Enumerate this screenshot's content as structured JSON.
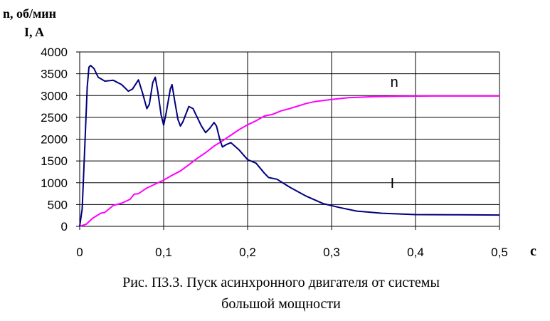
{
  "chart_data": {
    "type": "line",
    "ylabel_line1": "n, об/мин",
    "ylabel_line2": "I, A",
    "xlabel": "c",
    "xlim": [
      0,
      0.5
    ],
    "ylim": [
      0,
      4000
    ],
    "x_ticks": [
      0,
      0.1,
      0.2,
      0.3,
      0.4,
      0.5
    ],
    "x_tick_labels": [
      "0",
      "0,1",
      "0,2",
      "0,3",
      "0,4",
      "0,5"
    ],
    "y_ticks": [
      0,
      500,
      1000,
      1500,
      2000,
      2500,
      3000,
      3500,
      4000
    ],
    "y_tick_labels": [
      "0",
      "500",
      "1000",
      "1500",
      "2000",
      "2500",
      "3000",
      "3500",
      "4000"
    ],
    "grid": true,
    "series": [
      {
        "name": "n",
        "color": "#ff00ff",
        "label_at": [
          0.37,
          3200
        ],
        "points": [
          [
            0,
            0
          ],
          [
            0.008,
            50
          ],
          [
            0.015,
            180
          ],
          [
            0.025,
            300
          ],
          [
            0.03,
            320
          ],
          [
            0.04,
            480
          ],
          [
            0.05,
            530
          ],
          [
            0.06,
            620
          ],
          [
            0.065,
            740
          ],
          [
            0.07,
            750
          ],
          [
            0.08,
            880
          ],
          [
            0.09,
            970
          ],
          [
            0.1,
            1060
          ],
          [
            0.11,
            1170
          ],
          [
            0.12,
            1270
          ],
          [
            0.13,
            1410
          ],
          [
            0.14,
            1560
          ],
          [
            0.15,
            1690
          ],
          [
            0.16,
            1840
          ],
          [
            0.17,
            1960
          ],
          [
            0.18,
            2090
          ],
          [
            0.19,
            2220
          ],
          [
            0.2,
            2330
          ],
          [
            0.21,
            2420
          ],
          [
            0.22,
            2530
          ],
          [
            0.23,
            2570
          ],
          [
            0.24,
            2650
          ],
          [
            0.25,
            2700
          ],
          [
            0.26,
            2760
          ],
          [
            0.27,
            2820
          ],
          [
            0.28,
            2860
          ],
          [
            0.3,
            2910
          ],
          [
            0.32,
            2950
          ],
          [
            0.35,
            2975
          ],
          [
            0.38,
            2985
          ],
          [
            0.42,
            2990
          ],
          [
            0.46,
            2990
          ],
          [
            0.5,
            2990
          ]
        ]
      },
      {
        "name": "I",
        "color": "#000080",
        "label_at": [
          0.37,
          880
        ],
        "points": [
          [
            0,
            0
          ],
          [
            0.003,
            400
          ],
          [
            0.006,
            1800
          ],
          [
            0.009,
            3200
          ],
          [
            0.011,
            3650
          ],
          [
            0.013,
            3690
          ],
          [
            0.017,
            3620
          ],
          [
            0.022,
            3420
          ],
          [
            0.03,
            3330
          ],
          [
            0.04,
            3350
          ],
          [
            0.05,
            3250
          ],
          [
            0.058,
            3100
          ],
          [
            0.063,
            3150
          ],
          [
            0.07,
            3360
          ],
          [
            0.075,
            3050
          ],
          [
            0.08,
            2700
          ],
          [
            0.083,
            2800
          ],
          [
            0.087,
            3300
          ],
          [
            0.09,
            3420
          ],
          [
            0.093,
            3100
          ],
          [
            0.097,
            2550
          ],
          [
            0.1,
            2320
          ],
          [
            0.103,
            2600
          ],
          [
            0.108,
            3150
          ],
          [
            0.11,
            3250
          ],
          [
            0.113,
            2900
          ],
          [
            0.117,
            2450
          ],
          [
            0.12,
            2300
          ],
          [
            0.123,
            2400
          ],
          [
            0.13,
            2750
          ],
          [
            0.135,
            2700
          ],
          [
            0.14,
            2500
          ],
          [
            0.145,
            2300
          ],
          [
            0.15,
            2150
          ],
          [
            0.155,
            2250
          ],
          [
            0.16,
            2380
          ],
          [
            0.163,
            2300
          ],
          [
            0.167,
            1980
          ],
          [
            0.17,
            1820
          ],
          [
            0.175,
            1880
          ],
          [
            0.18,
            1920
          ],
          [
            0.19,
            1750
          ],
          [
            0.2,
            1530
          ],
          [
            0.21,
            1450
          ],
          [
            0.22,
            1220
          ],
          [
            0.225,
            1120
          ],
          [
            0.235,
            1080
          ],
          [
            0.25,
            900
          ],
          [
            0.27,
            690
          ],
          [
            0.29,
            520
          ],
          [
            0.31,
            430
          ],
          [
            0.33,
            350
          ],
          [
            0.36,
            300
          ],
          [
            0.4,
            270
          ],
          [
            0.45,
            265
          ],
          [
            0.5,
            260
          ]
        ]
      }
    ]
  },
  "caption": {
    "line1": "Рис. П3.3. Пуск асинхронного двигателя от системы",
    "line2": "большой мощности"
  }
}
